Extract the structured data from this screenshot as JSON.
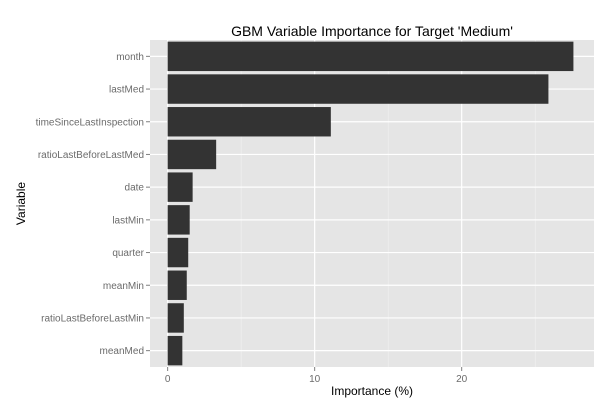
{
  "chart_data": {
    "type": "bar",
    "orientation": "horizontal",
    "title": "GBM Variable Importance for Target 'Medium'",
    "xlabel": "Importance (%)",
    "ylabel": "Variable",
    "categories": [
      "month",
      "lastMed",
      "timeSinceLastInspection",
      "ratioLastBeforeLastMed",
      "date",
      "lastMin",
      "quarter",
      "meanMin",
      "ratioLastBeforeLastMin",
      "meanMed"
    ],
    "values": [
      27.6,
      25.9,
      11.1,
      3.3,
      1.7,
      1.5,
      1.4,
      1.3,
      1.1,
      1.0
    ],
    "xlim": [
      -1.2,
      29.0
    ],
    "xticks": [
      0,
      10,
      20
    ],
    "grid": true,
    "legend": "none",
    "colors": {
      "panel_background": "#e5e5e5",
      "grid_major": "#ffffff",
      "grid_minor": "#f2f2f2",
      "bar_fill": "#333333"
    }
  }
}
